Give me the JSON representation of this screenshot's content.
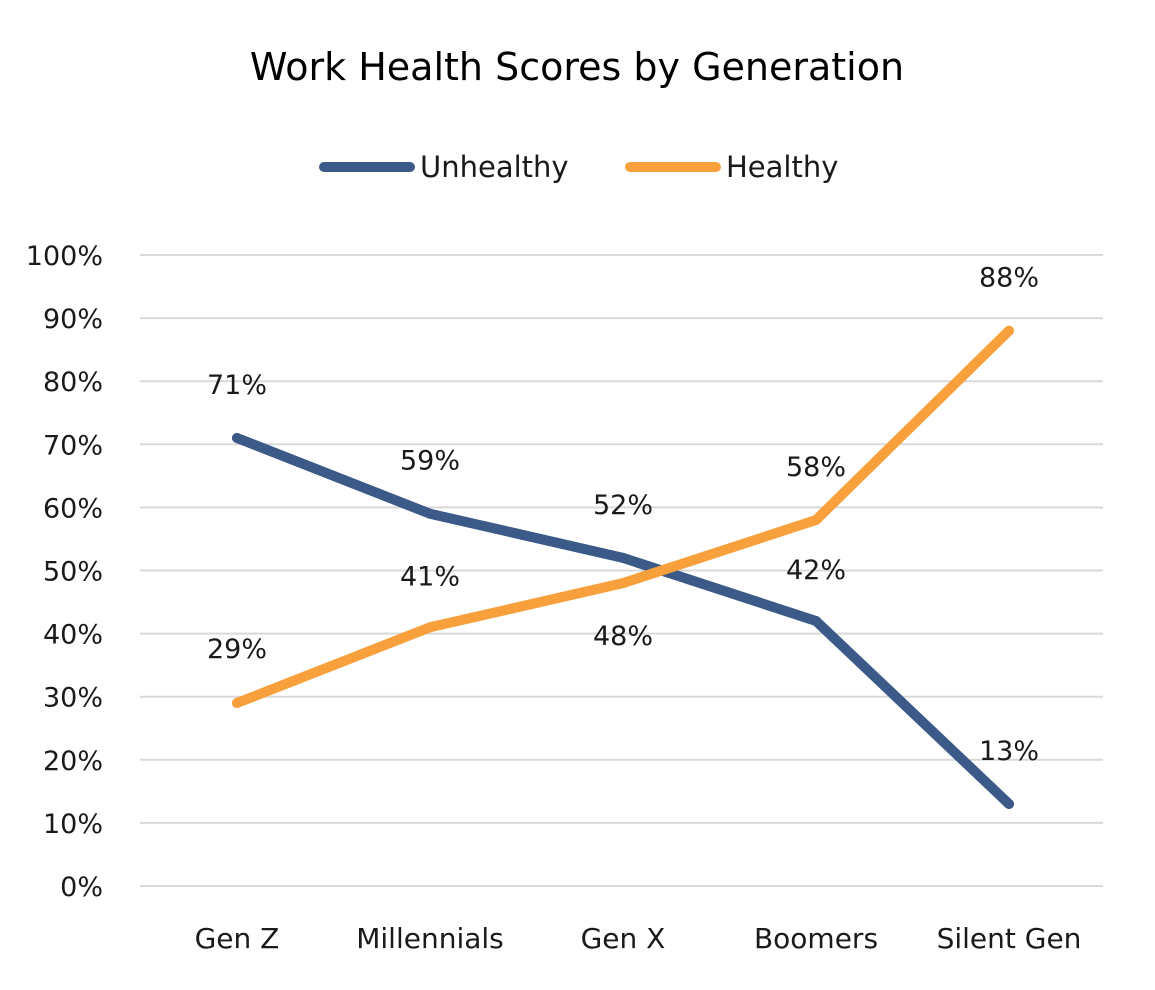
{
  "chart_data": {
    "type": "line",
    "title": "Work Health Scores by Generation",
    "xlabel": "",
    "ylabel": "",
    "categories": [
      "Gen Z",
      "Millennials",
      "Gen X",
      "Boomers",
      "Silent Gen"
    ],
    "ylim": [
      0,
      100
    ],
    "yticks": [
      0,
      10,
      20,
      30,
      40,
      50,
      60,
      70,
      80,
      90,
      100
    ],
    "ytick_labels": [
      "0%",
      "10%",
      "20%",
      "30%",
      "40%",
      "50%",
      "60%",
      "70%",
      "80%",
      "90%",
      "100%"
    ],
    "grid": true,
    "legend_position": "top",
    "series": [
      {
        "name": "Unhealthy",
        "color": "#3c5a87",
        "values": [
          71,
          59,
          52,
          42,
          13
        ],
        "labels": [
          "71%",
          "59%",
          "52%",
          "42%",
          "13%"
        ]
      },
      {
        "name": "Healthy",
        "color": "#f7a03c",
        "values": [
          29,
          41,
          48,
          58,
          88
        ],
        "labels": [
          "29%",
          "41%",
          "48%",
          "58%",
          "88%"
        ]
      }
    ]
  }
}
